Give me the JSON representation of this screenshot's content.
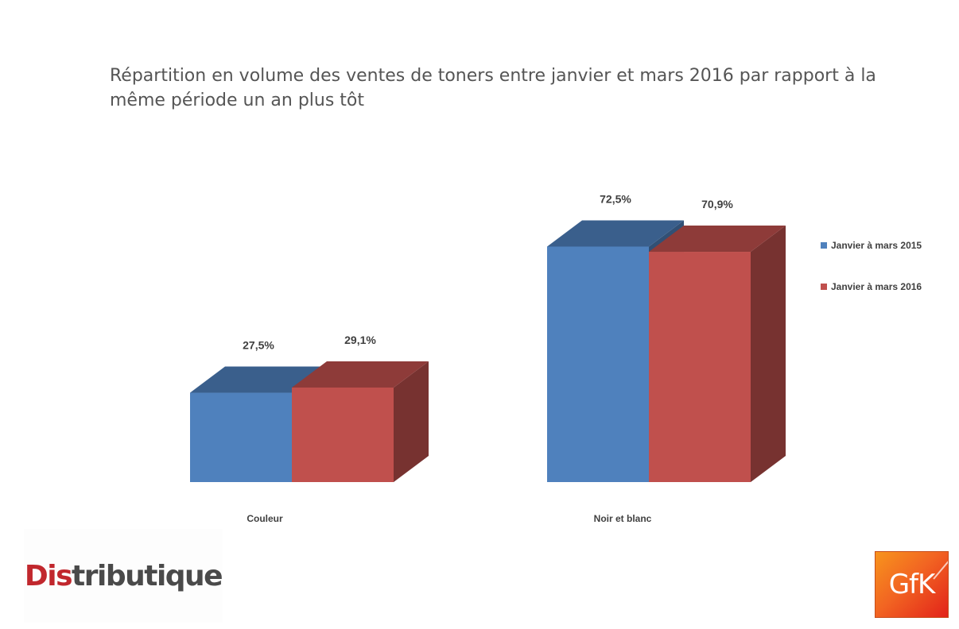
{
  "title": "Répartition en volume des ventes de toners entre janvier et mars 2016 par rapport à la même période un an plus tôt",
  "chart_data": {
    "type": "bar",
    "categories": [
      "Couleur",
      "Noir et blanc"
    ],
    "series": [
      {
        "name": "Janvier à mars 2015",
        "values": [
          27.5,
          72.5
        ],
        "labels": [
          "27,5%",
          "72,5%"
        ],
        "color": "#4f81bd"
      },
      {
        "name": "Janvier à mars 2016",
        "values": [
          29.1,
          70.9
        ],
        "labels": [
          "29,1%",
          "70,9%"
        ],
        "color": "#c0504d"
      }
    ],
    "ylim": [
      0,
      100
    ],
    "grid": false,
    "legend_position": "right",
    "style": "3d-clustered-bar"
  },
  "logos": {
    "left": {
      "text_accent": "Dis",
      "text_rest": "tributique",
      "accent_color": "#c1272d"
    },
    "right": {
      "text": "GfK",
      "color": "#f26522"
    }
  }
}
